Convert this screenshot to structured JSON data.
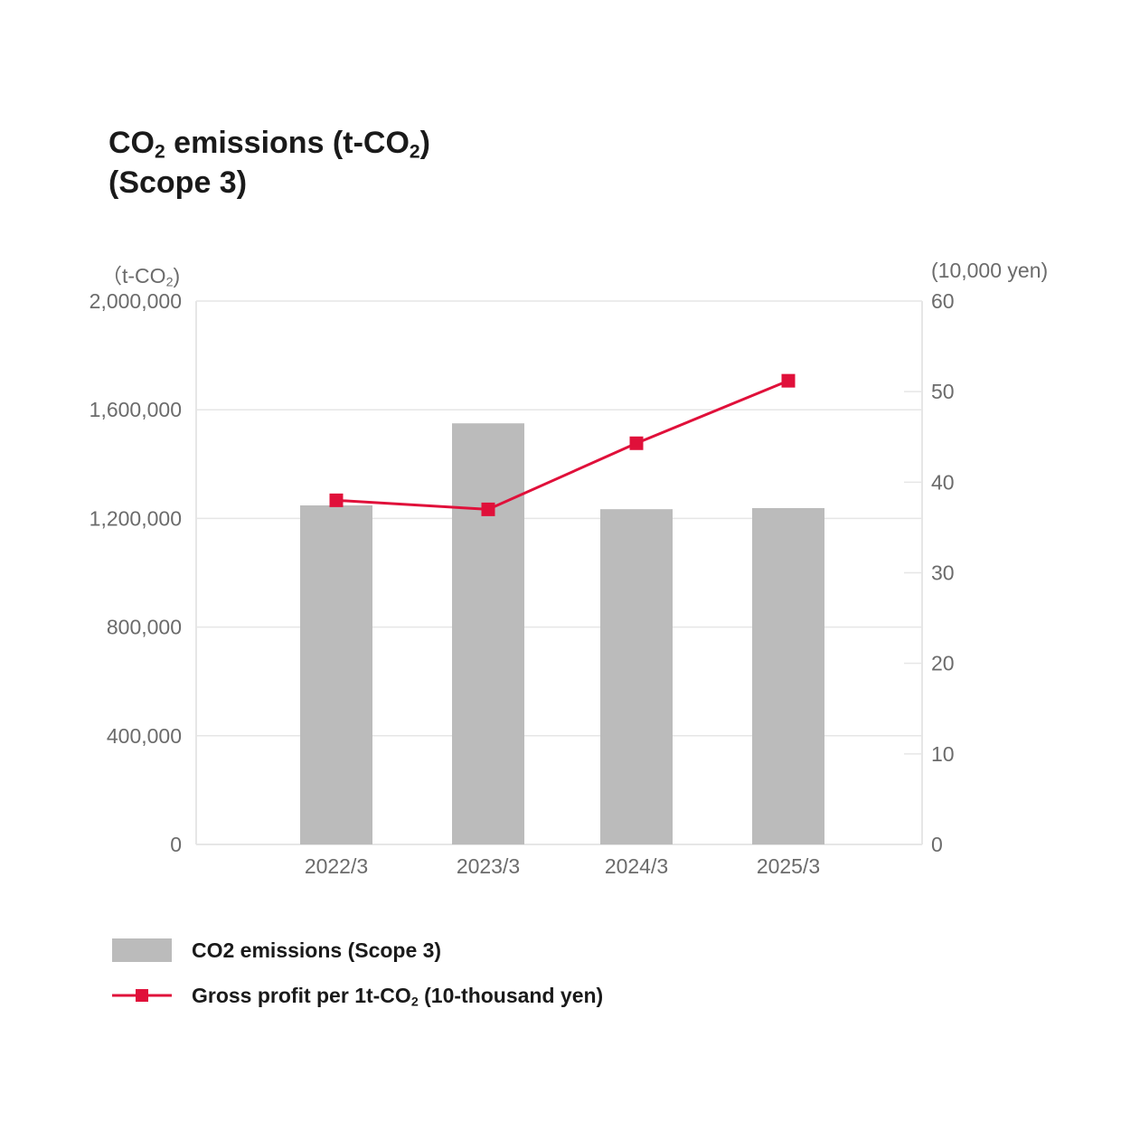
{
  "title": {
    "line1_pre": "CO",
    "line1_sub": "2",
    "line1_mid": " emissions (t-CO",
    "line1_sub2": "2",
    "line1_post": ")",
    "line2": "(Scope 3)"
  },
  "axes": {
    "left_unit_pre": "（t-CO",
    "left_unit_sub": "2",
    "left_unit_post": ")",
    "right_unit": "(10,000 yen)"
  },
  "legend": {
    "bar_label": "CO2 emissions (Scope 3)",
    "line_label_pre": "Gross profit per 1t-CO",
    "line_label_sub": "2",
    "line_label_post": " (10-thousand yen)"
  },
  "colors": {
    "bar": "#bbbbbb",
    "line": "#e0103a",
    "grid": "#e6e6e6",
    "tick_text": "#6b6b6b"
  },
  "chart_data": {
    "type": "bar",
    "categories": [
      "2022/3",
      "2023/3",
      "2024/3",
      "2025/3"
    ],
    "series": [
      {
        "name": "CO2 emissions (Scope 3)",
        "type": "bar",
        "axis": "left",
        "values": [
          1248000,
          1550000,
          1234000,
          1238000
        ]
      },
      {
        "name": "Gross profit per 1t-CO2 (10-thousand yen)",
        "type": "line",
        "axis": "right",
        "marker": "square",
        "values": [
          38.0,
          37.0,
          44.3,
          51.2
        ]
      }
    ],
    "left_axis": {
      "ylim": [
        0,
        2000000
      ],
      "ticks": [
        0,
        400000,
        800000,
        1200000,
        1600000,
        2000000
      ],
      "tick_labels": [
        "0",
        "400,000",
        "800,000",
        "1,200,000",
        "1,600,000",
        "2,000,000"
      ]
    },
    "right_axis": {
      "ylim": [
        0,
        60
      ],
      "ticks": [
        0,
        10,
        20,
        30,
        40,
        50,
        60
      ],
      "tick_labels": [
        "0",
        "10",
        "20",
        "30",
        "40",
        "50",
        "60"
      ]
    },
    "grid": true,
    "legend_position": "bottom-left"
  }
}
